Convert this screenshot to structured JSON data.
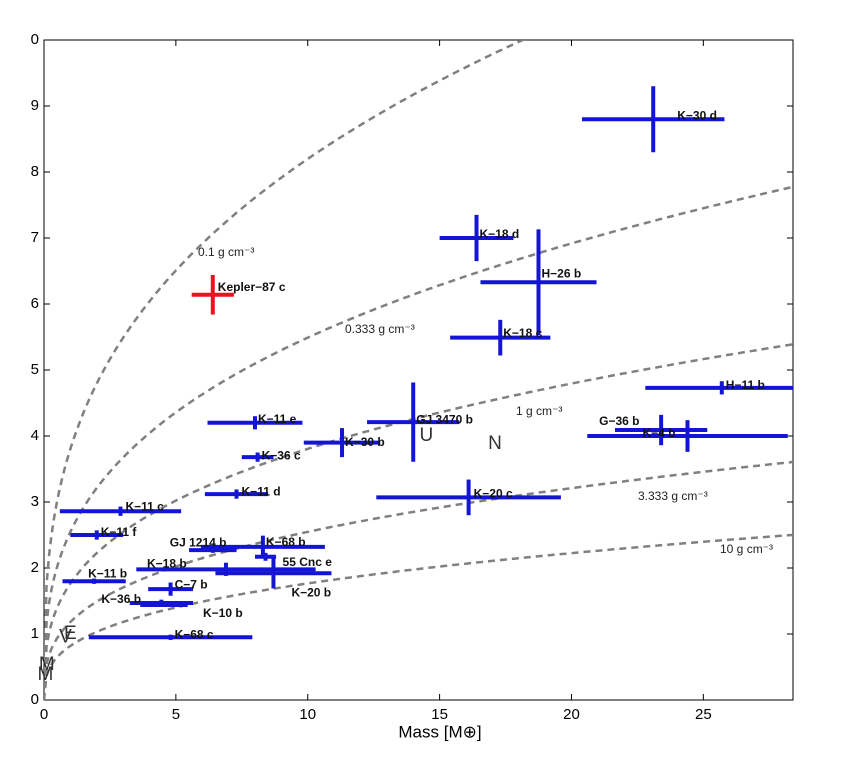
{
  "chart_data": {
    "type": "errorbar",
    "xlabel": "Mass [M⊕]",
    "xlim": [
      0,
      28.4
    ],
    "ylim": [
      0,
      10
    ],
    "xticks": [
      0,
      5,
      10,
      15,
      20,
      25
    ],
    "yticks": [
      0,
      1,
      2,
      3,
      4,
      5,
      6,
      7,
      8,
      9,
      {
        "value": 10,
        "label": "0"
      }
    ],
    "density_curves": {
      "color": "#808080",
      "values": [
        0.1,
        0.333,
        1,
        3.333,
        10
      ],
      "labels": [
        "0.1 g cm⁻³",
        "0.333 g cm⁻³",
        "1 g cm⁻³",
        "3.333 g cm⁻³",
        "10 g cm⁻³"
      ]
    },
    "points": [
      {
        "name": "K−30 d",
        "x": 23.1,
        "xerr": 2.7,
        "y": 8.8,
        "yerr": 0.5,
        "color": "#1414d4"
      },
      {
        "name": "K−18 d",
        "x": 16.4,
        "xerr": 1.4,
        "y": 7.0,
        "yerr": 0.35,
        "color": "#1414d4"
      },
      {
        "name": "H−26 b",
        "x": 18.75,
        "xerr": 2.2,
        "y": 6.33,
        "yerr": 0.8,
        "color": "#1414d4"
      },
      {
        "name": "K−18 c",
        "x": 17.3,
        "xerr": 1.9,
        "y": 5.49,
        "yerr": 0.27,
        "color": "#1414d4"
      },
      {
        "name": "Kepler−87 c",
        "x": 6.4,
        "xerr": 0.8,
        "y": 6.14,
        "yerr": 0.3,
        "color": "#e8141e"
      },
      {
        "name": "H−11 b",
        "x": 25.7,
        "xerr": 2.9,
        "y": 4.73,
        "yerr": 0.1,
        "color": "#1414d4"
      },
      {
        "name": "G−36 b",
        "x": 23.4,
        "xerr": 1.75,
        "y": 4.09,
        "yerr": 0.23,
        "color": "#1414d4"
      },
      {
        "name": "K−4 b",
        "x": 24.4,
        "xerr": 3.8,
        "y": 4.0,
        "yerr": 0.24,
        "color": "#1414d4"
      },
      {
        "name": "GJ 3470 b",
        "x": 14.0,
        "xerr": 1.75,
        "y": 4.21,
        "yerr": 0.6,
        "color": "#1414d4"
      },
      {
        "name": "K−11 e",
        "x": 8.0,
        "xerr": 1.8,
        "y": 4.2,
        "yerr": 0.1,
        "color": "#1414d4"
      },
      {
        "name": "K−30 b",
        "x": 11.3,
        "xerr": 1.45,
        "y": 3.9,
        "yerr": 0.22,
        "color": "#1414d4"
      },
      {
        "name": "K−36 c",
        "x": 8.1,
        "xerr": 0.6,
        "y": 3.68,
        "yerr": 0.07,
        "color": "#1414d4"
      },
      {
        "name": "K−11 d",
        "x": 7.3,
        "xerr": 1.2,
        "y": 3.12,
        "yerr": 0.07,
        "color": "#1414d4"
      },
      {
        "name": "K−20 c",
        "x": 16.1,
        "xerr": 3.5,
        "y": 3.07,
        "yerr": 0.27,
        "color": "#1414d4"
      },
      {
        "name": "K−11 c",
        "x": 2.9,
        "xerr": 2.3,
        "y": 2.86,
        "yerr": 0.07,
        "color": "#1414d4"
      },
      {
        "name": "K−11 f",
        "x": 2.0,
        "xerr": 1.0,
        "y": 2.5,
        "yerr": 0.07,
        "color": "#1414d4"
      },
      {
        "name": "GJ 1214 b",
        "x": 6.4,
        "xerr": 0.9,
        "y": 2.27,
        "yerr": 0.04,
        "color": "#1414d4"
      },
      {
        "name": "K−68 b",
        "x": 8.3,
        "xerr": 2.35,
        "y": 2.32,
        "yerr": 0.17,
        "color": "#1414d4"
      },
      {
        "name": "55 Cnc e",
        "x": 8.4,
        "xerr": 0.4,
        "y": 2.17,
        "yerr": 0.06,
        "color": "#1414d4"
      },
      {
        "name": "K−18 b",
        "x": 6.9,
        "xerr": 3.4,
        "y": 1.98,
        "yerr": 0.1,
        "color": "#1414d4"
      },
      {
        "name": "K−20 b",
        "x": 8.7,
        "xerr": 2.2,
        "y": 1.92,
        "yerr": 0.23,
        "color": "#1414d4"
      },
      {
        "name": "K−11 b",
        "x": 1.9,
        "xerr": 1.2,
        "y": 1.8,
        "yerr": 0.04,
        "color": "#1414d4"
      },
      {
        "name": "C−7 b",
        "x": 4.8,
        "xerr": 0.85,
        "y": 1.68,
        "yerr": 0.1,
        "color": "#1414d4"
      },
      {
        "name": "K−36 b",
        "x": 4.45,
        "xerr": 1.2,
        "y": 1.47,
        "yerr": 0.05,
        "color": "#1414d4"
      },
      {
        "name": "K−10 b",
        "x": 4.55,
        "xerr": 0.9,
        "y": 1.44,
        "yerr": 0.03,
        "color": "#1414d4"
      },
      {
        "name": "K−68 c",
        "x": 4.8,
        "xerr": 3.1,
        "y": 0.95,
        "yerr": 0.04,
        "color": "#1414d4"
      }
    ],
    "solar_system": [
      {
        "label": "V",
        "x": 0.815,
        "y": 0.95
      },
      {
        "label": "E",
        "x": 1.0,
        "y": 1.0
      },
      {
        "label": "M",
        "x": 0.107,
        "y": 0.53
      },
      {
        "label": "M",
        "x": 0.055,
        "y": 0.38
      },
      {
        "label": "U",
        "x": 14.5,
        "y": 4.0
      },
      {
        "label": "N",
        "x": 17.1,
        "y": 3.88
      }
    ]
  }
}
